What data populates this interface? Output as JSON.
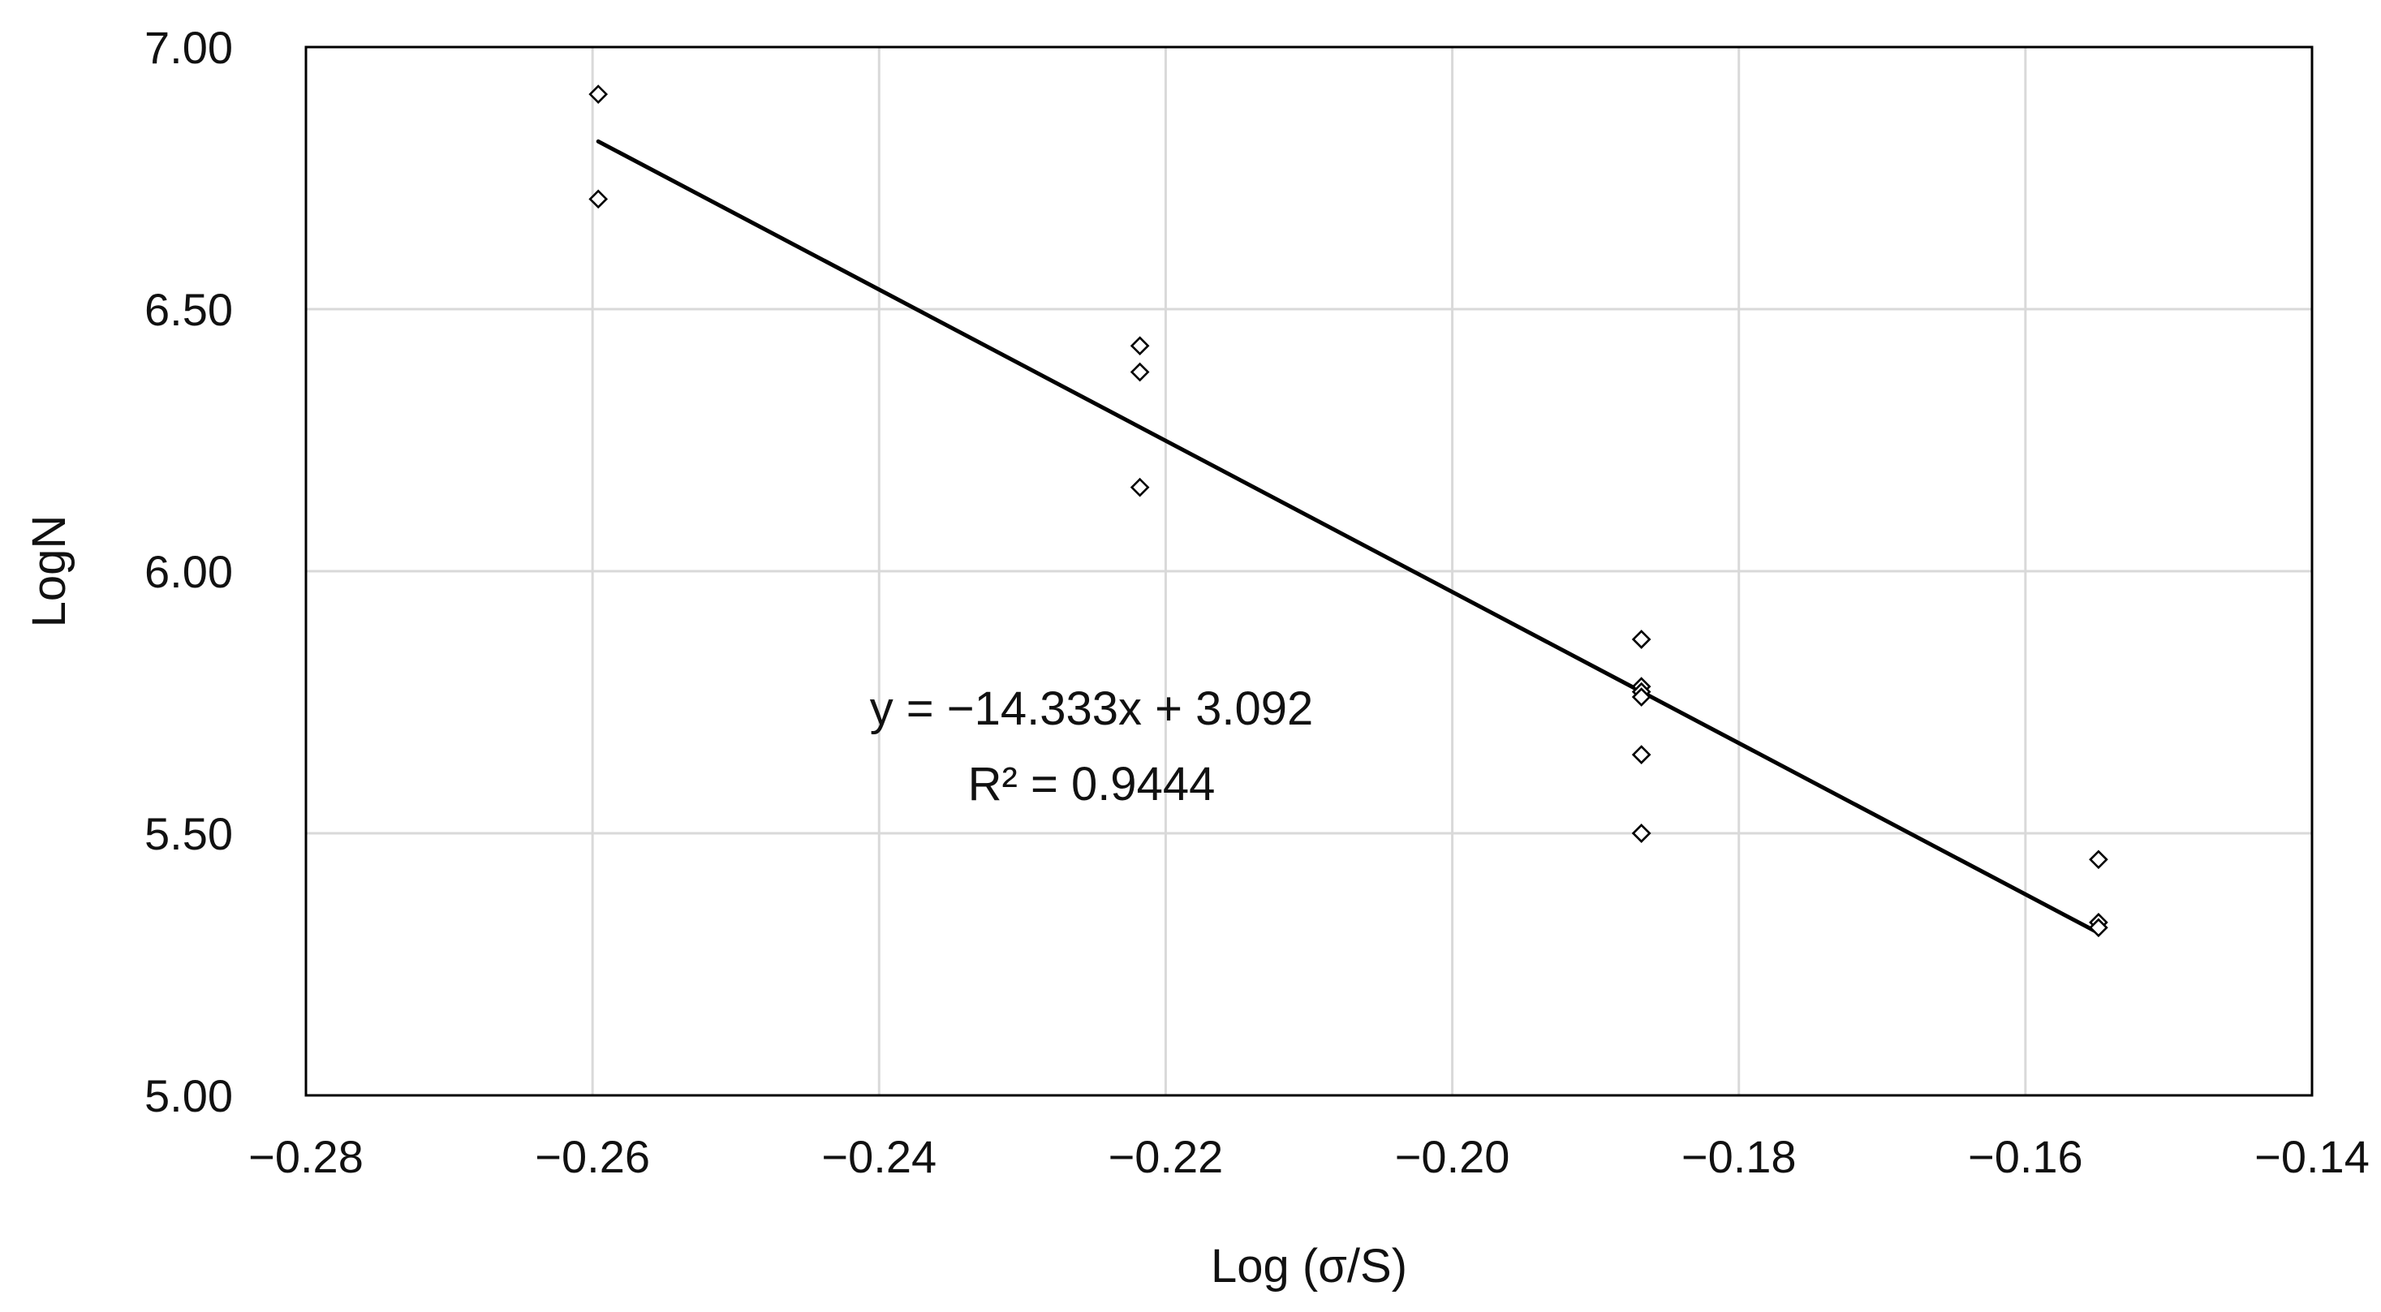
{
  "chart_data": {
    "type": "scatter",
    "title": "",
    "xlabel": "Log (σ/S)",
    "ylabel": "LogN",
    "xlim": [
      -0.28,
      -0.14
    ],
    "ylim": [
      5.0,
      7.0
    ],
    "x_ticks": [
      -0.28,
      -0.26,
      -0.24,
      -0.22,
      -0.2,
      -0.18,
      -0.16,
      -0.14
    ],
    "x_tick_labels": [
      "−0.28",
      "−0.26",
      "−0.24",
      "−0.22",
      "−0.20",
      "−0.18",
      "−0.16",
      "−0.14"
    ],
    "y_ticks": [
      5.0,
      5.5,
      6.0,
      6.5,
      7.0
    ],
    "y_tick_labels": [
      "5.00",
      "5.50",
      "6.00",
      "6.50",
      "7.00"
    ],
    "grid": true,
    "marker": "diamond-open",
    "series": [
      {
        "x": [
          -0.2596,
          -0.2596,
          -0.2218,
          -0.2218,
          -0.2218,
          -0.1868,
          -0.1868,
          -0.1868,
          -0.1868,
          -0.1868,
          -0.1868,
          -0.1868,
          -0.1549,
          -0.1549,
          -0.1549
        ],
        "y": [
          6.91,
          6.71,
          6.43,
          6.38,
          6.16,
          5.87,
          5.78,
          5.77,
          5.76,
          5.65,
          5.5,
          5.5,
          5.45,
          5.33,
          5.32
        ]
      }
    ],
    "trendline": {
      "slope": -14.333,
      "intercept": 3.092,
      "x_range": [
        -0.2596,
        -0.1549
      ],
      "y_range": [
        6.82,
        5.31
      ],
      "equation": "y = −14.333x + 3.092",
      "r_squared": "R² = 0.9444"
    },
    "colors": {
      "grid": "#d9d9d9",
      "axis": "#000000",
      "marker": "#000000",
      "trendline": "#000000"
    }
  }
}
